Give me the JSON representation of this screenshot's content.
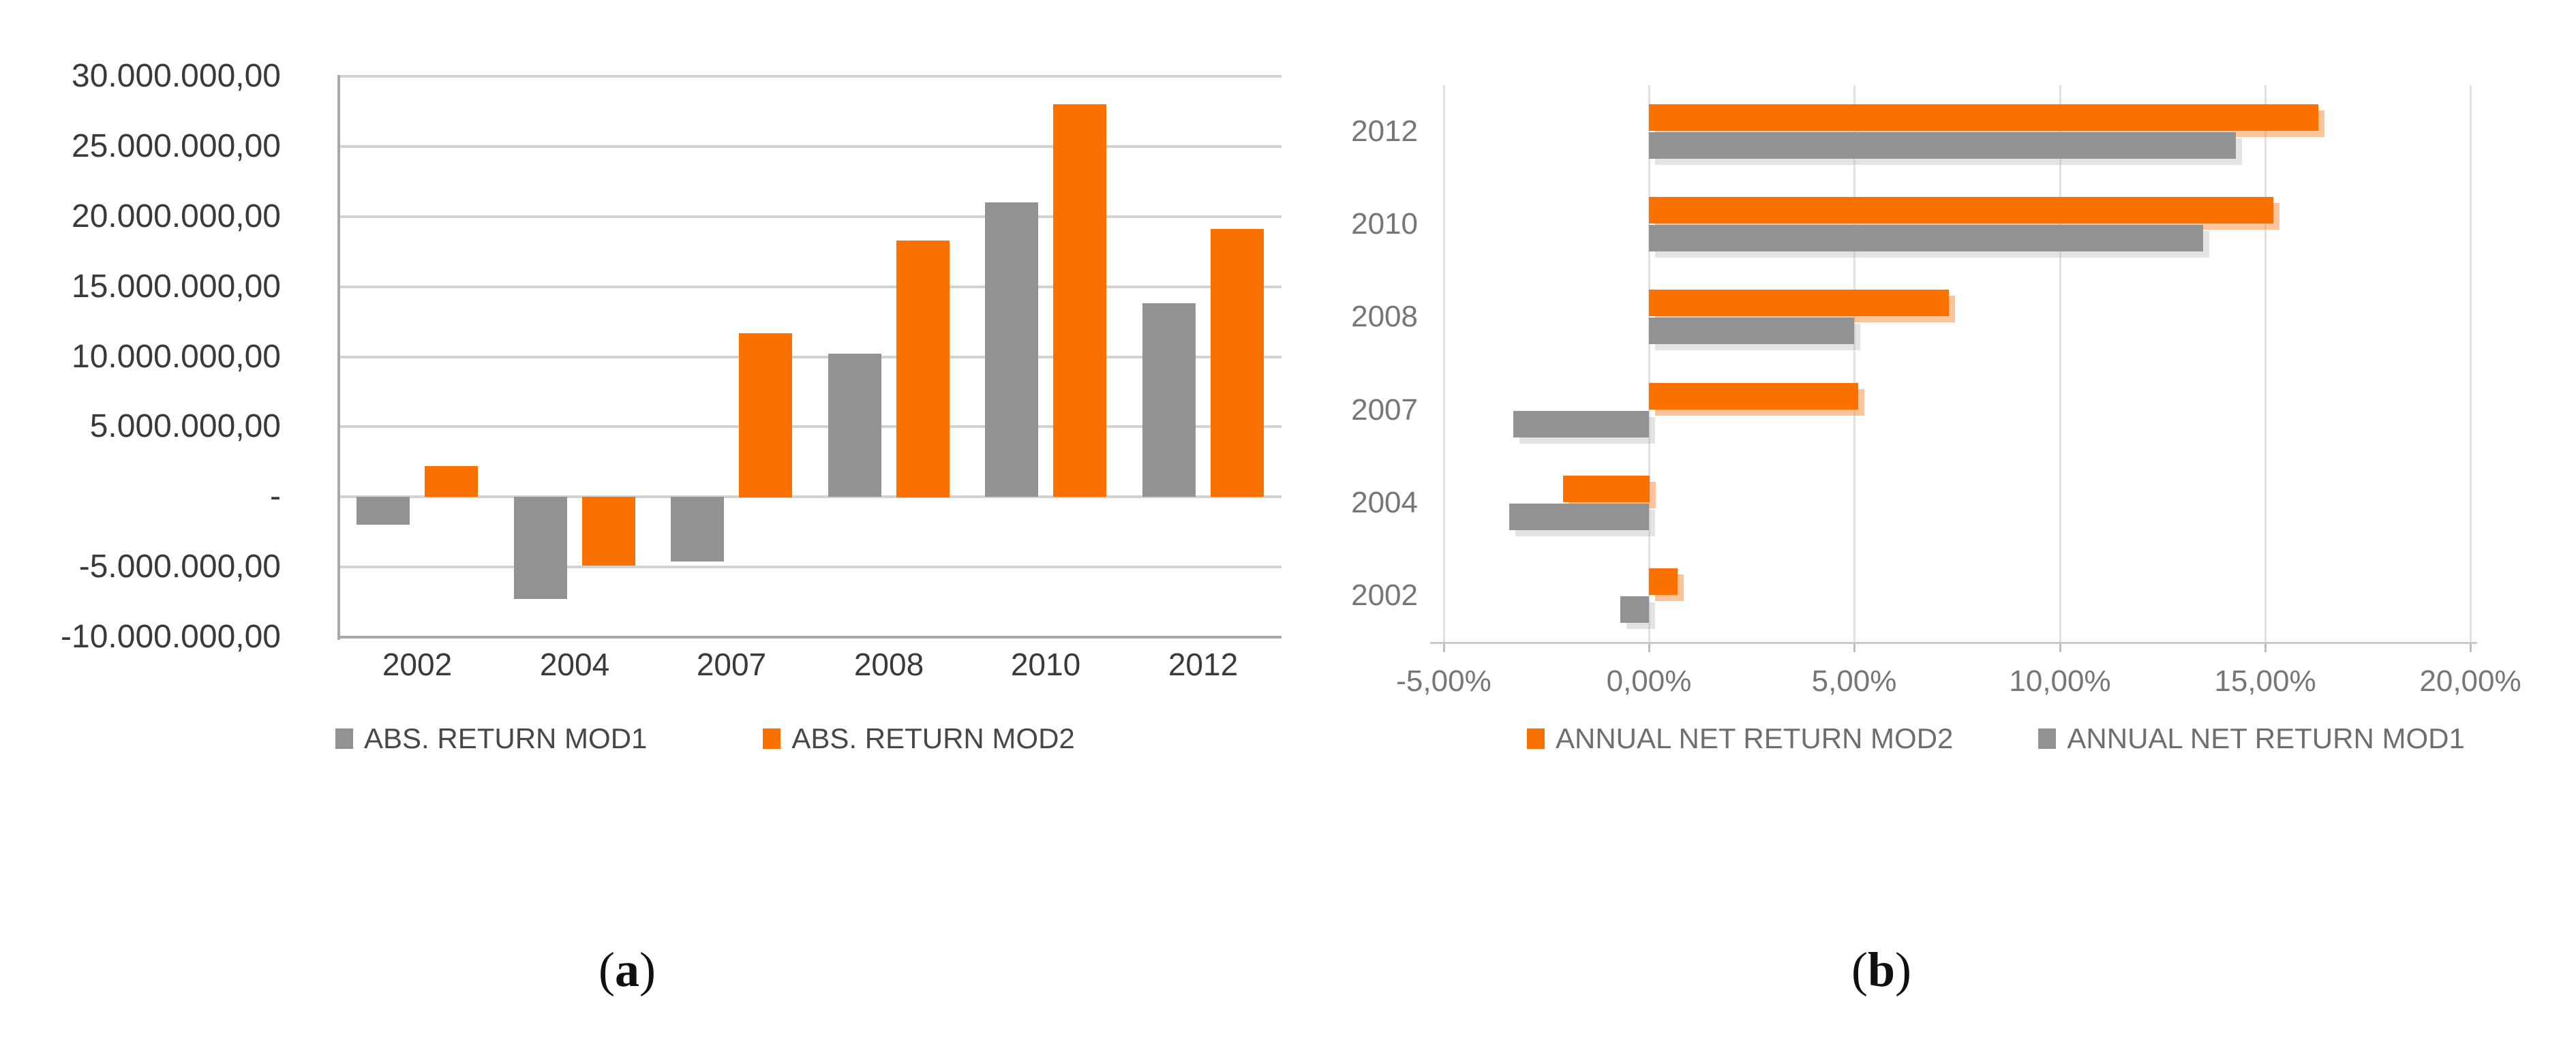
{
  "figure": {
    "captions": [
      {
        "open": "(",
        "letter": "a",
        "close": ")"
      },
      {
        "open": "(",
        "letter": "b",
        "close": ")"
      }
    ]
  },
  "colors": {
    "mod1_gray": "#929292",
    "mod2_orange": "#FB7100",
    "mod2_orange_shadow": "rgba(251,148,74,0.55)",
    "mod1_gray_shadow": "rgba(184,184,184,0.40)",
    "gridline_a": "#D2D2D2",
    "axis_a": "#A8A8A8",
    "gridline_b": "#E0E0E0",
    "axis_b": "#C9C9C9",
    "tick_b": "#BDBDBD",
    "text_dark": "#3A3A3A",
    "text_gray": "#767676"
  },
  "chart_data": [
    {
      "id": "a",
      "type": "bar",
      "orientation": "vertical",
      "title": "",
      "categories": [
        "2002",
        "2004",
        "2007",
        "2008",
        "2010",
        "2012"
      ],
      "series": [
        {
          "name": "ABS. RETURN MOD1",
          "color_key": "mod1_gray",
          "values": [
            -2000000,
            -7300000,
            -4600000,
            10200000,
            21000000,
            13800000
          ]
        },
        {
          "name": "ABS. RETURN MOD2",
          "color_key": "mod2_orange",
          "values": [
            2200000,
            -4900000,
            11700000,
            18300000,
            28000000,
            19100000
          ]
        }
      ],
      "ylim": [
        -10000000,
        30000000
      ],
      "ytick_step": 5000000,
      "ytick_labels_top_to_bottom": [
        "30.000.000,00",
        "25.000.000,00",
        "20.000.000,00",
        "15.000.000,00",
        "10.000.000,00",
        "5.000.000,00",
        "-",
        "-5.000.000,00",
        "-10.000.000,00"
      ],
      "grid": true,
      "legend_position": "bottom"
    },
    {
      "id": "b",
      "type": "bar",
      "orientation": "horizontal",
      "title": "",
      "categories": [
        "2002",
        "2004",
        "2007",
        "2008",
        "2010",
        "2012"
      ],
      "display_order_top_to_bottom": [
        "2012",
        "2010",
        "2008",
        "2007",
        "2004",
        "2002"
      ],
      "series": [
        {
          "name": "ANNUAL NET RETURN MOD2",
          "color_key": "mod2_orange",
          "values": [
            0.7,
            -2.1,
            5.1,
            7.3,
            15.2,
            16.3
          ]
        },
        {
          "name": "ANNUAL NET RETURN MOD1",
          "color_key": "mod1_gray",
          "values": [
            -0.7,
            -3.4,
            -3.3,
            5.0,
            13.5,
            14.3
          ]
        }
      ],
      "xlim": [
        -5,
        20
      ],
      "xtick_step": 5,
      "xtick_labels": [
        "-5,00%",
        "0,00%",
        "5,00%",
        "10,00%",
        "15,00%",
        "20,00%"
      ],
      "values_unit": "percent",
      "grid": true,
      "legend_position": "bottom"
    }
  ]
}
